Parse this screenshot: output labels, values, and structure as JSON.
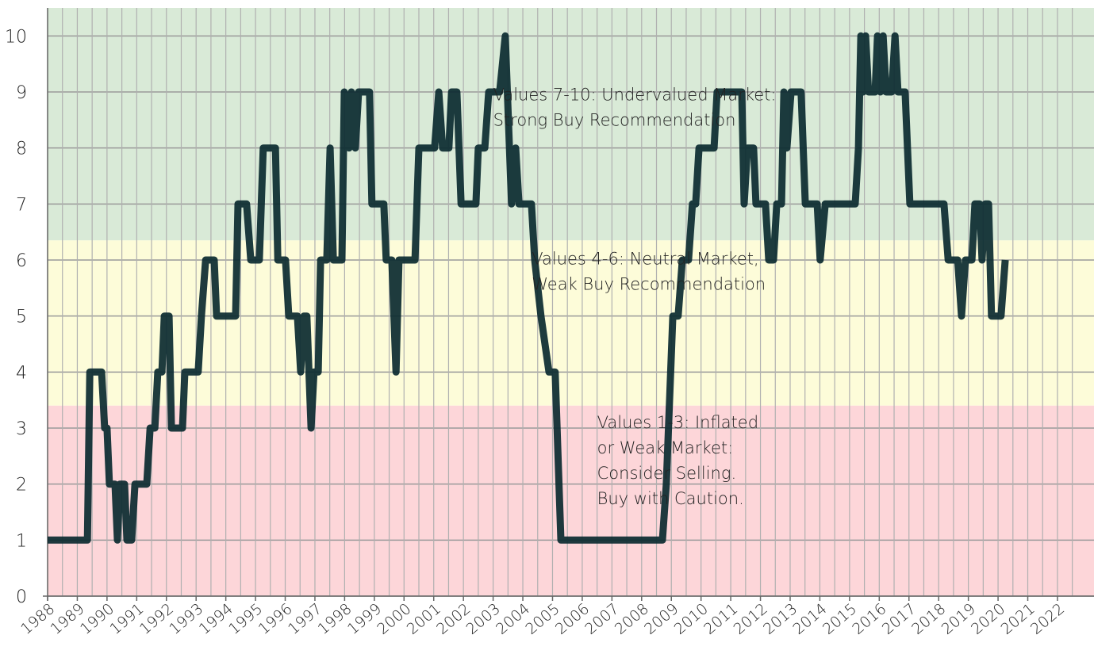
{
  "chart_data": {
    "type": "line",
    "x": [
      1988.0,
      1989.34,
      1989.42,
      1989.82,
      1989.92,
      1990.0,
      1990.08,
      1990.27,
      1990.35,
      1990.43,
      1990.59,
      1990.67,
      1990.83,
      1990.94,
      1991.34,
      1991.45,
      1991.61,
      1991.71,
      1991.85,
      1991.93,
      1992.09,
      1992.17,
      1992.54,
      1992.62,
      1993.07,
      1993.18,
      1993.32,
      1993.61,
      1993.69,
      1994.33,
      1994.41,
      1994.7,
      1994.84,
      1995.13,
      1995.26,
      1995.67,
      1995.75,
      1996.01,
      1996.12,
      1996.41,
      1996.52,
      1996.63,
      1996.73,
      1996.87,
      1996.97,
      1997.11,
      1997.19,
      1997.4,
      1997.51,
      1997.62,
      1997.91,
      1997.99,
      1998.15,
      1998.23,
      1998.36,
      1998.47,
      1998.84,
      1998.92,
      1999.32,
      1999.4,
      1999.59,
      1999.73,
      1999.83,
      2000.37,
      2000.5,
      2001.03,
      2001.17,
      2001.3,
      2001.51,
      2001.6,
      2001.78,
      2001.92,
      2002.42,
      2002.5,
      2002.72,
      2002.85,
      2003.22,
      2003.41,
      2003.62,
      2003.76,
      2003.87,
      2004.29,
      2004.4,
      2004.61,
      2004.88,
      2005.09,
      2005.28,
      2008.7,
      2008.83,
      2009.05,
      2009.23,
      2009.37,
      2009.58,
      2009.71,
      2009.82,
      2009.93,
      2010.44,
      2010.54,
      2011.37,
      2011.45,
      2011.56,
      2011.77,
      2011.85,
      2012.17,
      2012.28,
      2012.44,
      2012.55,
      2012.71,
      2012.79,
      2012.89,
      2013.03,
      2013.37,
      2013.51,
      2013.91,
      2014.01,
      2014.18,
      2015.19,
      2015.3,
      2015.38,
      2015.46,
      2015.54,
      2015.64,
      2015.86,
      2015.94,
      2016.04,
      2016.13,
      2016.23,
      2016.42,
      2016.53,
      2016.63,
      2016.87,
      2017.03,
      2018.18,
      2018.32,
      2018.64,
      2018.77,
      2018.9,
      2019.12,
      2019.22,
      2019.38,
      2019.46,
      2019.57,
      2019.68,
      2019.78,
      2020.1,
      2020.24
    ],
    "values": [
      1,
      1,
      4,
      4,
      3,
      3,
      2,
      2,
      1,
      2,
      2,
      1,
      1,
      2,
      2,
      3,
      3,
      4,
      4,
      5,
      5,
      3,
      3,
      4,
      4,
      5,
      6,
      6,
      5,
      5,
      7,
      7,
      6,
      6,
      8,
      8,
      6,
      6,
      5,
      5,
      4,
      5,
      5,
      3,
      4,
      4,
      6,
      6,
      8,
      6,
      6,
      9,
      8,
      9,
      8,
      9,
      9,
      7,
      7,
      6,
      6,
      4,
      6,
      6,
      8,
      8,
      9,
      8,
      8,
      9,
      9,
      7,
      7,
      8,
      8,
      9,
      9,
      10,
      7,
      8,
      7,
      7,
      6,
      5,
      4,
      4,
      1,
      1,
      2,
      5,
      5,
      6,
      6,
      7,
      7,
      8,
      8,
      9,
      9,
      7,
      8,
      8,
      7,
      7,
      6,
      6,
      7,
      7,
      9,
      8,
      9,
      9,
      7,
      7,
      6,
      7,
      7,
      8,
      10,
      9,
      10,
      9,
      9,
      10,
      9,
      10,
      9,
      9,
      10,
      9,
      9,
      7,
      7,
      6,
      6,
      5,
      6,
      6,
      7,
      7,
      6,
      7,
      7,
      5,
      5,
      6
    ],
    "line_color": "#0b2a30",
    "xlim": [
      1988,
      2023.23
    ],
    "xticks": [
      1988,
      1989,
      1990,
      1991,
      1992,
      1993,
      1994,
      1995,
      1996,
      1997,
      1998,
      1999,
      2000,
      2001,
      2002,
      2003,
      2004,
      2005,
      2006,
      2007,
      2008,
      2009,
      2010,
      2011,
      2012,
      2013,
      2014,
      2015,
      2016,
      2017,
      2018,
      2019,
      2020,
      2021,
      2022
    ],
    "ylim": [
      0,
      10.5
    ],
    "yticks": [
      0,
      1,
      2,
      3,
      4,
      5,
      6,
      7,
      8,
      9,
      10
    ],
    "grid": true,
    "minor_x_grid": true,
    "bands": [
      {
        "from": 6.35,
        "to": 10.5,
        "color": "#d9ead7"
      },
      {
        "from": 3.4,
        "to": 6.35,
        "color": "#fdfcd9"
      },
      {
        "from": 0,
        "to": 3.4,
        "color": "#fdd6d9"
      }
    ],
    "annotations": [
      {
        "lines": [
          "Values 7-10: Undervalued Market:",
          "Strong Buy Recommendation"
        ],
        "x": 2003.0,
        "y": 8.85
      },
      {
        "lines": [
          "Values 4-6: Neutral Market,",
          "Weak Buy Recommendation"
        ],
        "x": 2004.3,
        "y": 5.92
      },
      {
        "lines": [
          "Values 1-3: Inflated",
          "or Weak Market:",
          "Consider Selling.",
          "Buy with Caution."
        ],
        "x": 2006.5,
        "y": 3.0
      }
    ]
  }
}
